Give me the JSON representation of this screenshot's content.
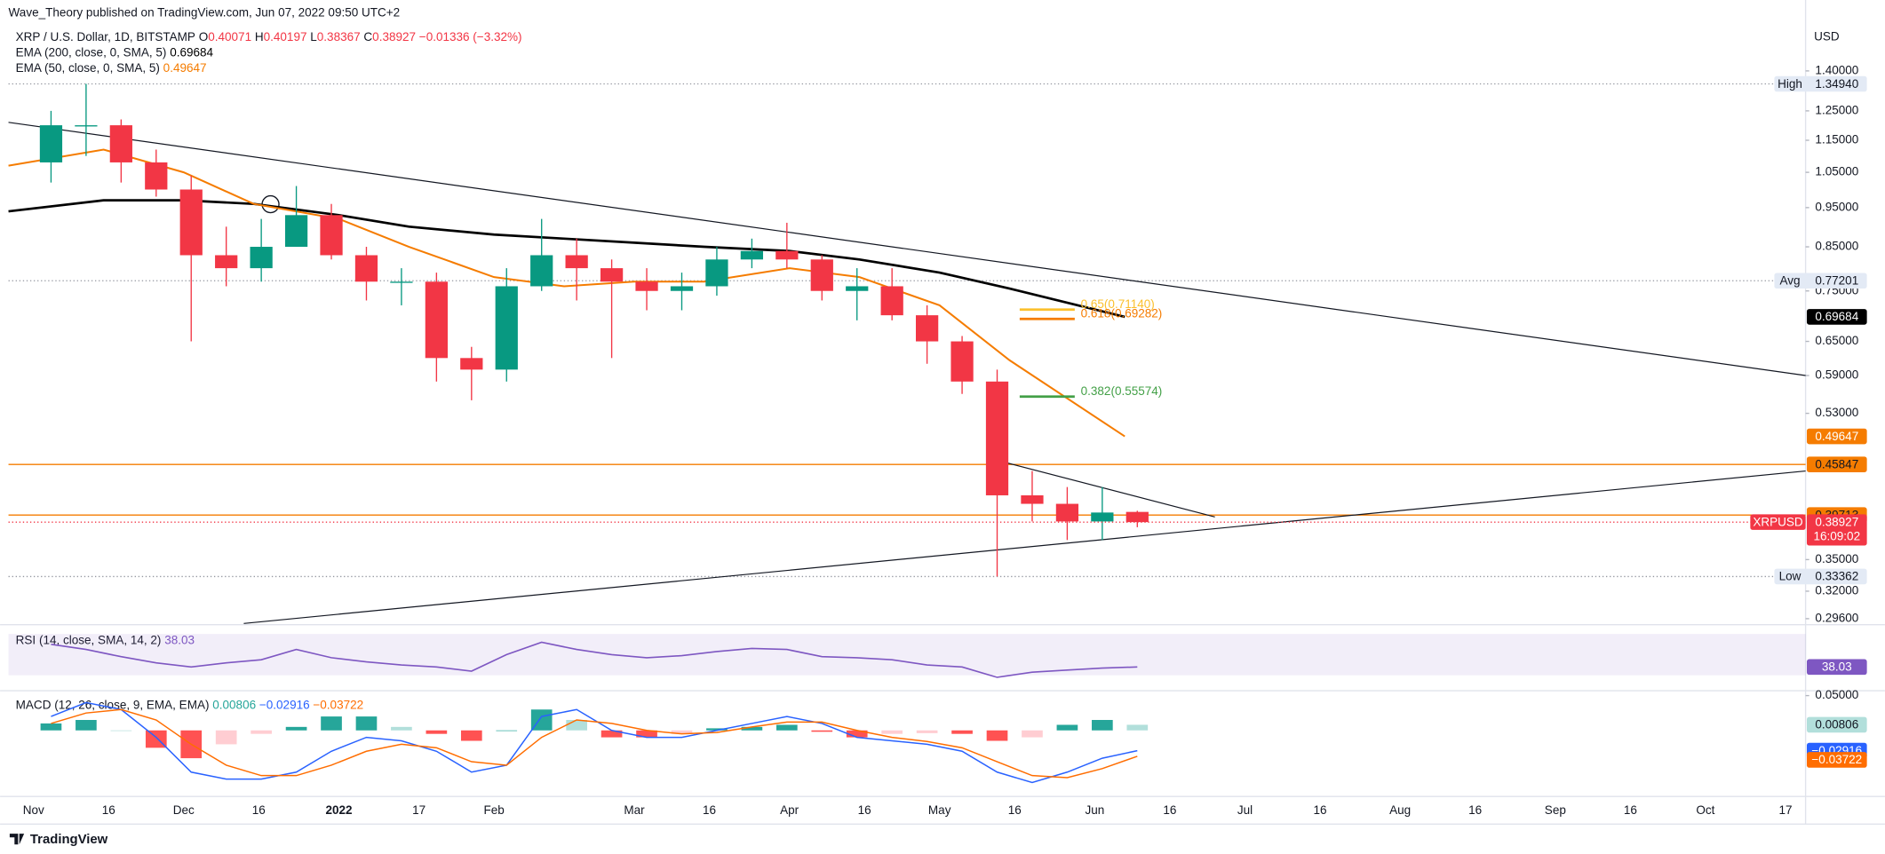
{
  "header": {
    "publisher": "Wave_Theory published on TradingView.com, Jun 07, 2022 09:50 UTC+2"
  },
  "footer": {
    "brand": "TradingView"
  },
  "chart_data": [
    {
      "type": "candlestick",
      "title": "XRP / U.S. Dollar, 1D, BITSTAMP",
      "ohlc_prefixes": [
        "O",
        "H",
        "L",
        "C"
      ],
      "change_label": "−0.01336 (−3.32%)",
      "currency": "USD",
      "log_scale": true,
      "up_color": "#089981",
      "down_color": "#f23645",
      "xlim": [
        "2021-10-27",
        "2022-10-21"
      ],
      "xticks": [
        {
          "value": "2021-11-01",
          "label": "Nov"
        },
        {
          "value": "2021-11-16",
          "label": "16"
        },
        {
          "value": "2021-12-01",
          "label": "Dec"
        },
        {
          "value": "2021-12-16",
          "label": "16"
        },
        {
          "value": "2022-01-01",
          "label": "2022"
        },
        {
          "value": "2022-01-17",
          "label": "17"
        },
        {
          "value": "2022-02-01",
          "label": "Feb"
        },
        {
          "value": "2022-03-01",
          "label": "Mar"
        },
        {
          "value": "2022-03-16",
          "label": "16"
        },
        {
          "value": "2022-04-01",
          "label": "Apr"
        },
        {
          "value": "2022-04-16",
          "label": "16"
        },
        {
          "value": "2022-05-01",
          "label": "May"
        },
        {
          "value": "2022-05-16",
          "label": "16"
        },
        {
          "value": "2022-06-01",
          "label": "Jun"
        },
        {
          "value": "2022-06-16",
          "label": "16"
        },
        {
          "value": "2022-07-01",
          "label": "Jul"
        },
        {
          "value": "2022-07-16",
          "label": "16"
        },
        {
          "value": "2022-08-01",
          "label": "Aug"
        },
        {
          "value": "2022-08-16",
          "label": "16"
        },
        {
          "value": "2022-09-01",
          "label": "Sep"
        },
        {
          "value": "2022-09-16",
          "label": "16"
        },
        {
          "value": "2022-10-01",
          "label": "Oct"
        },
        {
          "value": "2022-10-17",
          "label": "17"
        }
      ],
      "ylim": [
        0.291,
        1.712
      ],
      "yticks": [
        {
          "value": 1.4,
          "label": "1.40000"
        },
        {
          "value": 1.25,
          "label": "1.25000"
        },
        {
          "value": 1.15,
          "label": "1.15000"
        },
        {
          "value": 1.05,
          "label": "1.05000"
        },
        {
          "value": 0.95,
          "label": "0.95000"
        },
        {
          "value": 0.85,
          "label": "0.85000"
        },
        {
          "value": 0.75,
          "label": "0.75000"
        },
        {
          "value": 0.65,
          "label": "0.65000"
        },
        {
          "value": 0.59,
          "label": "0.59000"
        },
        {
          "value": 0.53,
          "label": "0.53000"
        },
        {
          "value": 0.35,
          "label": "0.35000"
        },
        {
          "value": 0.32,
          "label": "0.32000"
        },
        {
          "value": 0.296,
          "label": "0.29600"
        }
      ],
      "x": [
        "2021-11-01",
        "2021-11-08",
        "2021-11-15",
        "2021-11-22",
        "2021-11-29",
        "2021-12-06",
        "2021-12-13",
        "2021-12-20",
        "2021-12-27",
        "2022-01-03",
        "2022-01-10",
        "2022-01-17",
        "2022-01-24",
        "2022-01-31",
        "2022-02-07",
        "2022-02-14",
        "2022-02-21",
        "2022-02-28",
        "2022-03-07",
        "2022-03-14",
        "2022-03-21",
        "2022-03-28",
        "2022-04-04",
        "2022-04-11",
        "2022-04-18",
        "2022-04-25",
        "2022-05-02",
        "2022-05-09",
        "2022-05-16",
        "2022-05-23",
        "2022-05-30",
        "2022-06-06"
      ],
      "open": [
        1.08,
        1.2,
        1.2,
        1.08,
        1.0,
        0.83,
        0.8,
        0.85,
        0.93,
        0.83,
        0.77,
        0.77,
        0.62,
        0.6,
        0.76,
        0.83,
        0.8,
        0.77,
        0.75,
        0.76,
        0.82,
        0.84,
        0.82,
        0.75,
        0.76,
        0.7,
        0.65,
        0.58,
        0.42,
        0.41,
        0.39,
        0.40071
      ],
      "high": [
        1.25,
        1.3494,
        1.22,
        1.12,
        1.04,
        0.9,
        0.92,
        1.01,
        0.96,
        0.85,
        0.8,
        0.79,
        0.64,
        0.8,
        0.92,
        0.87,
        0.82,
        0.8,
        0.79,
        0.85,
        0.87,
        0.91,
        0.83,
        0.8,
        0.8,
        0.72,
        0.66,
        0.6,
        0.45,
        0.43,
        0.43,
        0.40197
      ],
      "low": [
        1.02,
        1.1,
        1.02,
        0.98,
        0.65,
        0.76,
        0.77,
        0.85,
        0.82,
        0.73,
        0.72,
        0.58,
        0.55,
        0.58,
        0.75,
        0.73,
        0.62,
        0.71,
        0.71,
        0.74,
        0.8,
        0.8,
        0.73,
        0.69,
        0.69,
        0.61,
        0.56,
        0.33362,
        0.39,
        0.37,
        0.37,
        0.38367
      ],
      "close": [
        1.2,
        1.2,
        1.08,
        1.0,
        0.83,
        0.8,
        0.85,
        0.93,
        0.83,
        0.77,
        0.77,
        0.62,
        0.6,
        0.76,
        0.83,
        0.8,
        0.77,
        0.75,
        0.76,
        0.82,
        0.84,
        0.82,
        0.75,
        0.76,
        0.7,
        0.65,
        0.58,
        0.42,
        0.41,
        0.39,
        0.4,
        0.38927
      ],
      "lines": [
        {
          "name": "EMA (200, close, 0, SMA, 5)",
          "color": "#000000",
          "x": [
            "2021-10-27",
            "2021-11-15",
            "2021-12-01",
            "2021-12-15",
            "2022-01-01",
            "2022-01-15",
            "2022-02-01",
            "2022-02-15",
            "2022-03-01",
            "2022-03-15",
            "2022-04-01",
            "2022-04-15",
            "2022-05-01",
            "2022-05-15",
            "2022-06-07"
          ],
          "values": [
            0.94,
            0.97,
            0.97,
            0.96,
            0.93,
            0.9,
            0.88,
            0.87,
            0.86,
            0.85,
            0.84,
            0.82,
            0.79,
            0.755,
            0.69684
          ]
        },
        {
          "name": "EMA (50, close, 0, SMA, 5)",
          "color": "#f57c00",
          "x": [
            "2021-10-27",
            "2021-11-15",
            "2021-12-01",
            "2021-12-15",
            "2022-01-01",
            "2022-01-15",
            "2022-02-01",
            "2022-02-15",
            "2022-03-01",
            "2022-03-15",
            "2022-04-01",
            "2022-04-15",
            "2022-05-01",
            "2022-05-15",
            "2022-06-07"
          ],
          "values": [
            1.07,
            1.12,
            1.05,
            0.96,
            0.92,
            0.85,
            0.78,
            0.76,
            0.77,
            0.77,
            0.8,
            0.78,
            0.72,
            0.616,
            0.49647
          ]
        }
      ],
      "levels": [
        {
          "label": "High",
          "value": 1.3494,
          "value_label": "1.34940"
        },
        {
          "label": "Avg",
          "value": 0.77201,
          "value_label": "0.77201"
        },
        {
          "label": "Low",
          "value": 0.33362,
          "value_label": "0.33362"
        }
      ],
      "horizontal_lines": [
        {
          "value": 0.45847,
          "color": "#f57c00"
        },
        {
          "value": 0.39713,
          "color": "#f57c00"
        }
      ],
      "fib": [
        {
          "label": "0.65(0.71140)",
          "value": 0.7114,
          "color": "#fbc02d",
          "x": [
            "2022-05-17",
            "2022-05-28"
          ]
        },
        {
          "label": "0.618(0.69282)",
          "value": 0.69282,
          "color": "#f57c00",
          "x": [
            "2022-05-17",
            "2022-05-28"
          ]
        },
        {
          "label": "0.382(0.55574)",
          "value": 0.55574,
          "color": "#43a047",
          "x": [
            "2022-05-17",
            "2022-05-28"
          ]
        }
      ],
      "trendlines": [
        {
          "x": [
            "2021-10-27",
            "2022-10-21"
          ],
          "values": [
            1.21,
            0.59
          ]
        },
        {
          "x": [
            "2021-12-13",
            "2022-10-21"
          ],
          "values": [
            0.292,
            0.45
          ]
        },
        {
          "x": [
            "2022-05-13",
            "2022-06-25"
          ],
          "values": [
            0.463,
            0.395
          ]
        }
      ],
      "last_price": {
        "symbol": "XRPUSD",
        "countdown": "16:09:02",
        "color": "#f23645"
      }
    },
    {
      "type": "line",
      "title": "RSI (14, close, SMA, 14, 2)",
      "color": "#7e57c2",
      "band": [
        30,
        70
      ],
      "ylim": [
        15,
        79
      ],
      "x": [
        "2021-11-01",
        "2021-11-08",
        "2021-11-15",
        "2021-11-22",
        "2021-11-29",
        "2021-12-06",
        "2021-12-13",
        "2021-12-20",
        "2021-12-27",
        "2022-01-03",
        "2022-01-10",
        "2022-01-17",
        "2022-01-24",
        "2022-01-31",
        "2022-02-07",
        "2022-02-14",
        "2022-02-21",
        "2022-02-28",
        "2022-03-07",
        "2022-03-14",
        "2022-03-21",
        "2022-03-28",
        "2022-04-04",
        "2022-04-11",
        "2022-04-18",
        "2022-04-25",
        "2022-05-02",
        "2022-05-09",
        "2022-05-16",
        "2022-05-23",
        "2022-05-30",
        "2022-06-06"
      ],
      "values": [
        60,
        55,
        48,
        42,
        38,
        42,
        45,
        55,
        47,
        43,
        40,
        38,
        34,
        50,
        62,
        55,
        50,
        47,
        49,
        53,
        56,
        55,
        48,
        47,
        45,
        40,
        38,
        28,
        33,
        35,
        37,
        38.03
      ]
    },
    {
      "type": "macd",
      "title": "MACD (12, 26, close, 9, EMA, EMA)",
      "ylim": [
        -0.095,
        0.057
      ],
      "yticks": [
        {
          "value": 0.05,
          "label": "0.05000"
        }
      ],
      "histogram_colors": [
        "#26a69a",
        "#b2dfdb",
        "#ffcdd2",
        "#ff5252"
      ],
      "macd_color": "#2962ff",
      "signal_color": "#ff6d00",
      "x": [
        "2021-11-01",
        "2021-11-08",
        "2021-11-15",
        "2021-11-22",
        "2021-11-29",
        "2021-12-06",
        "2021-12-13",
        "2021-12-20",
        "2021-12-27",
        "2022-01-03",
        "2022-01-10",
        "2022-01-17",
        "2022-01-24",
        "2022-01-31",
        "2022-02-07",
        "2022-02-14",
        "2022-02-21",
        "2022-02-28",
        "2022-03-07",
        "2022-03-14",
        "2022-03-21",
        "2022-03-28",
        "2022-04-04",
        "2022-04-11",
        "2022-04-18",
        "2022-04-25",
        "2022-05-02",
        "2022-05-09",
        "2022-05-16",
        "2022-05-23",
        "2022-05-30",
        "2022-06-06"
      ],
      "histogram": [
        0.01,
        0.015,
        0.0,
        -0.025,
        -0.04,
        -0.02,
        -0.005,
        0.005,
        0.02,
        0.02,
        0.005,
        -0.005,
        -0.015,
        0.0,
        0.03,
        0.015,
        -0.01,
        -0.01,
        -0.005,
        0.003,
        0.005,
        0.008,
        -0.002,
        -0.01,
        -0.005,
        -0.004,
        -0.005,
        -0.015,
        -0.01,
        0.008,
        0.015,
        0.00806
      ],
      "macd": [
        0.02,
        0.04,
        0.03,
        -0.01,
        -0.06,
        -0.07,
        -0.07,
        -0.06,
        -0.03,
        -0.01,
        -0.015,
        -0.03,
        -0.06,
        -0.05,
        0.02,
        0.03,
        0.0,
        -0.01,
        -0.01,
        0.0,
        0.01,
        0.02,
        0.01,
        -0.01,
        -0.015,
        -0.02,
        -0.03,
        -0.06,
        -0.075,
        -0.06,
        -0.04,
        -0.02916
      ],
      "signal": [
        0.01,
        0.025,
        0.03,
        0.015,
        -0.02,
        -0.05,
        -0.065,
        -0.065,
        -0.05,
        -0.03,
        -0.02,
        -0.025,
        -0.045,
        -0.05,
        -0.01,
        0.015,
        0.01,
        0.0,
        -0.005,
        -0.003,
        0.005,
        0.012,
        0.012,
        0.0,
        -0.01,
        -0.016,
        -0.025,
        -0.045,
        -0.065,
        -0.068,
        -0.055,
        -0.03722
      ],
      "macd_last_label": "−0.02916",
      "signal_last_label": "−0.03722"
    }
  ]
}
